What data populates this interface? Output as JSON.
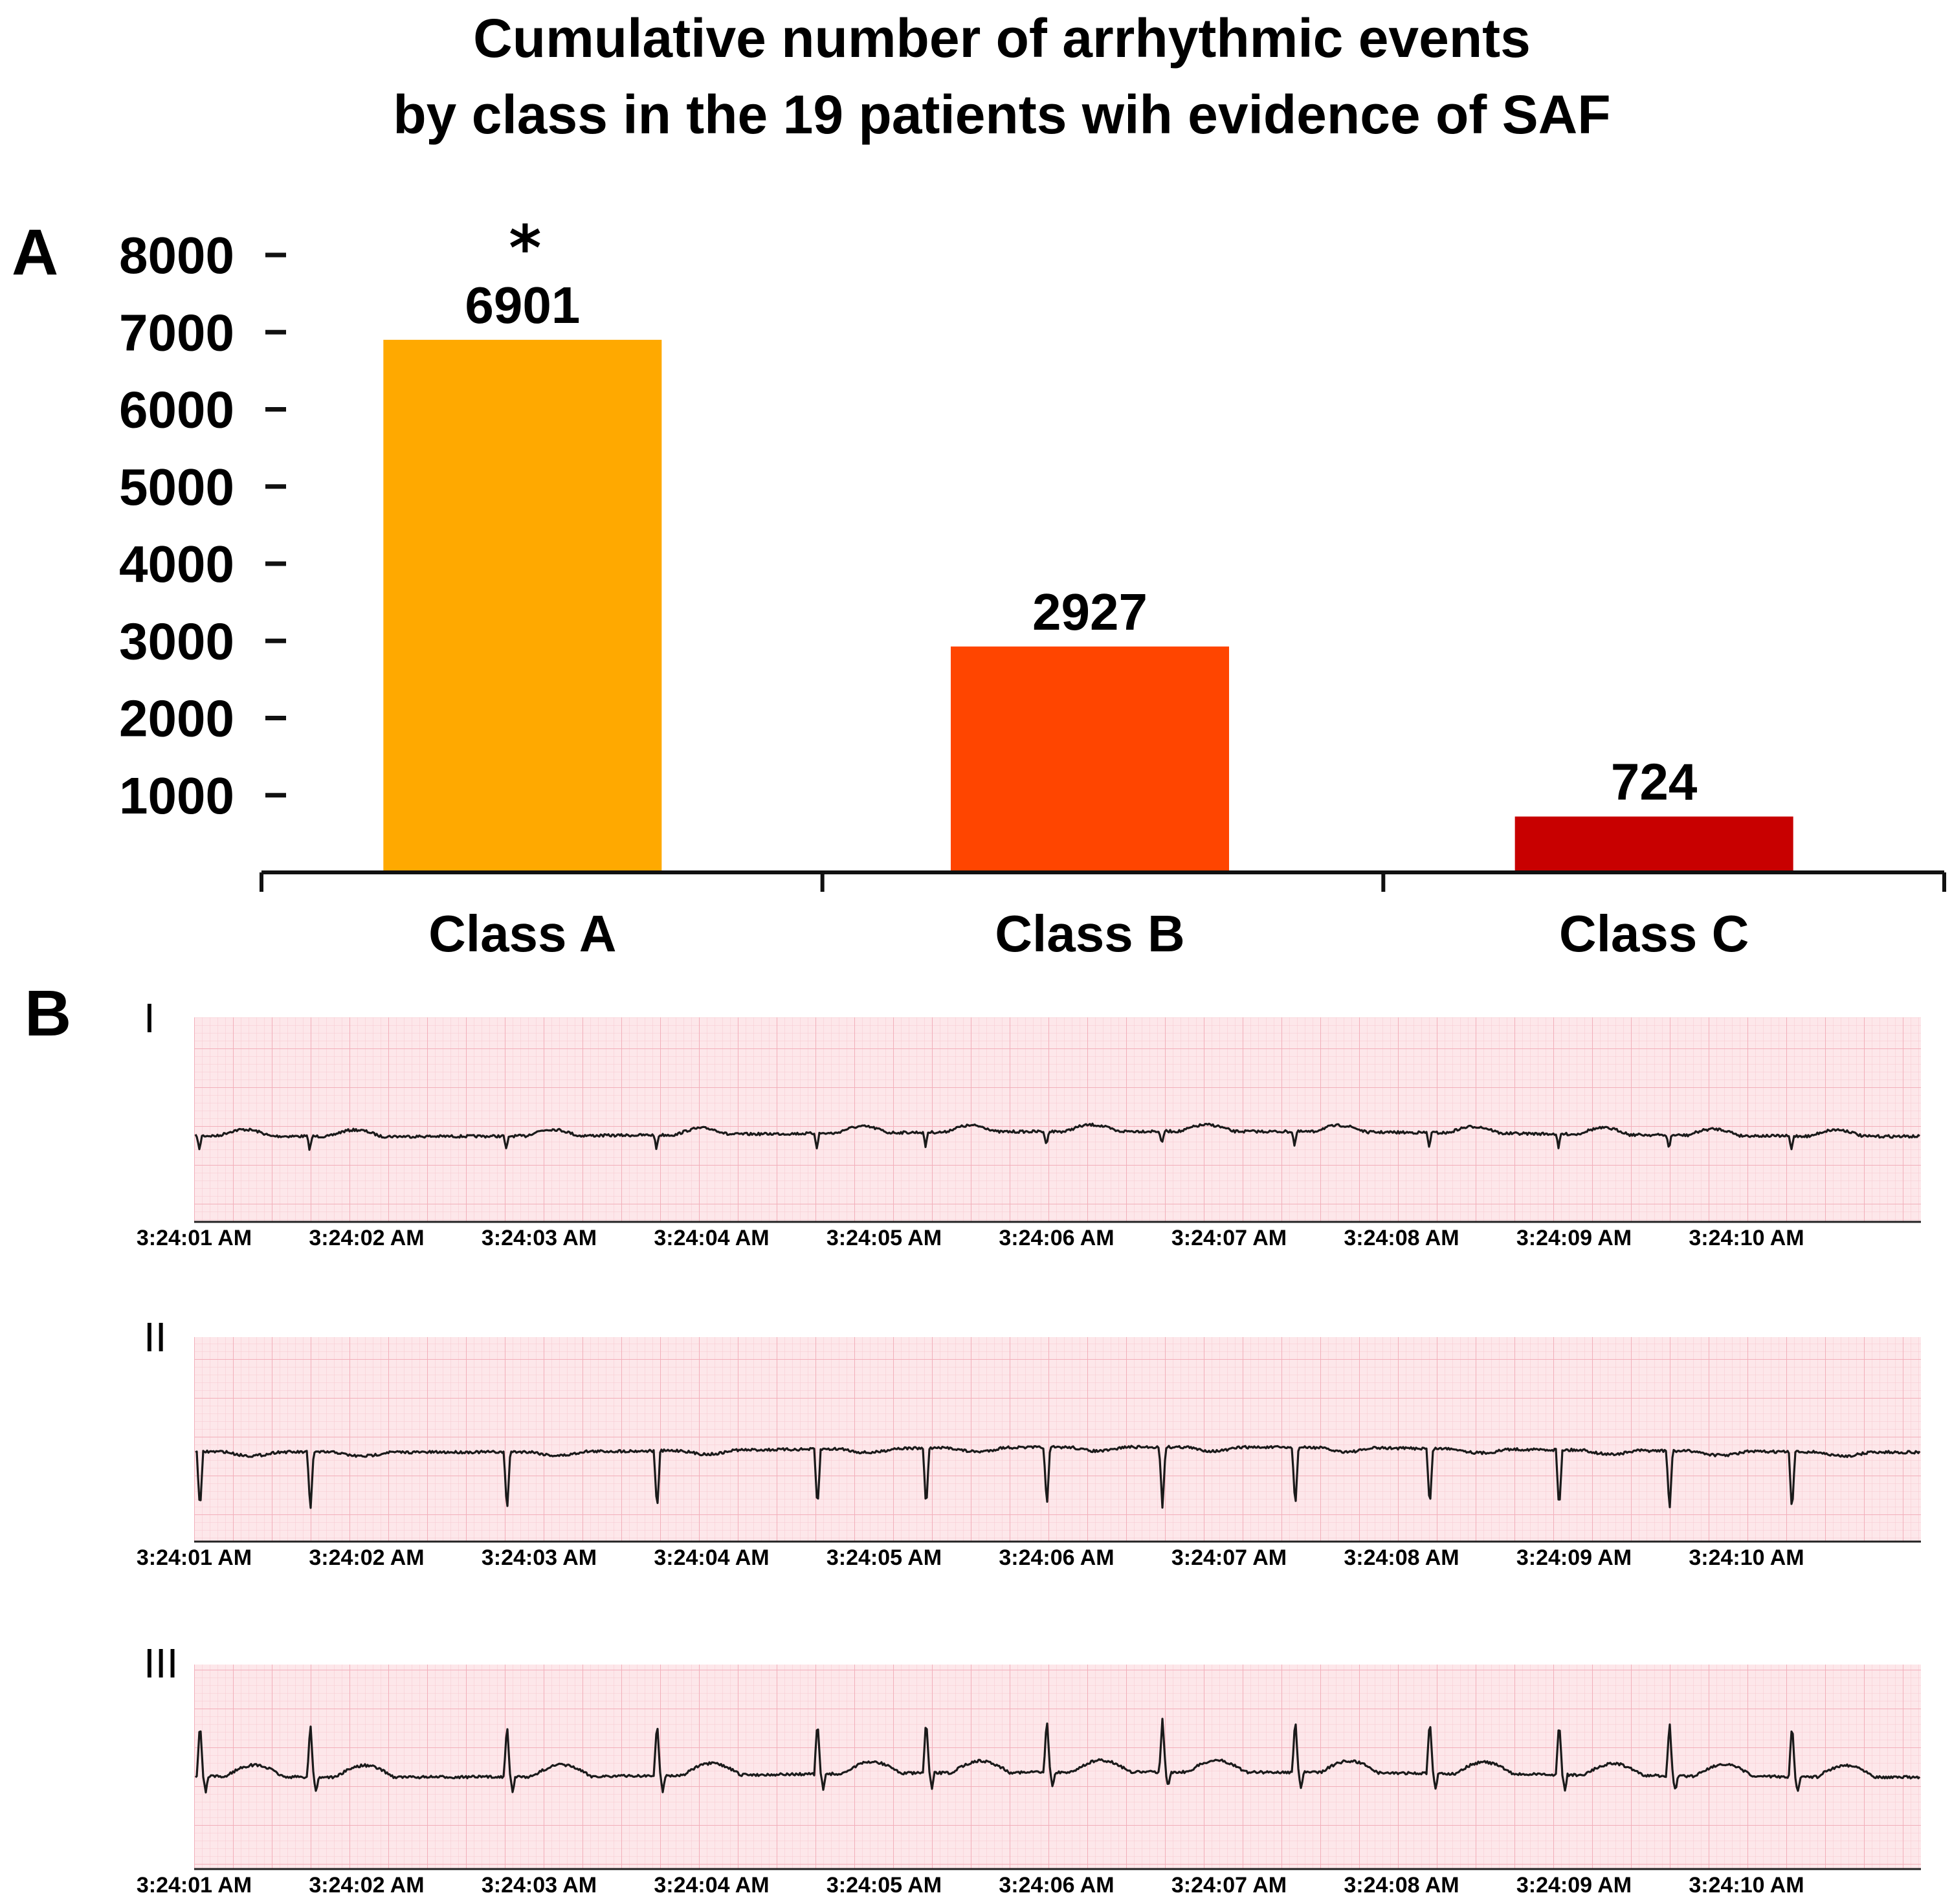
{
  "title_lines": [
    "Cumulative number of arrhythmic events",
    "by class in the 19 patients wih evidence of SAF"
  ],
  "chart_data": [
    {
      "panel": "A",
      "type": "bar",
      "categories": [
        "Class A",
        "Class B",
        "Class C"
      ],
      "values": [
        6901,
        2927,
        724
      ],
      "data_labels": [
        "6901",
        "2927",
        "724"
      ],
      "annotations": [
        {
          "category": "Class A",
          "text": "*"
        }
      ],
      "yticks": [
        1000,
        2000,
        3000,
        4000,
        5000,
        6000,
        7000,
        8000
      ],
      "ytick_labels": [
        "1000",
        "2000",
        "3000",
        "4000",
        "5000",
        "6000",
        "7000",
        "8000"
      ],
      "ylim": [
        0,
        8000
      ],
      "xlabel": "",
      "ylabel": "",
      "colors": [
        "#FFA900",
        "#FF4500",
        "#C80000"
      ],
      "grid": false
    },
    {
      "panel": "B",
      "type": "line",
      "description_type": "ecg_strip",
      "time_labels": [
        "3:24:01 AM",
        "3:24:02 AM",
        "3:24:03 AM",
        "3:24:04 AM",
        "3:24:05 AM",
        "3:24:06 AM",
        "3:24:07 AM",
        "3:24:08 AM",
        "3:24:09 AM",
        "3:24:10 AM"
      ],
      "leads": [
        {
          "name": "I",
          "polarity": "small",
          "beat_times": [
            0.03,
            0.67,
            1.81,
            2.68,
            3.61,
            4.24,
            4.94,
            5.61,
            6.38,
            7.16,
            7.91,
            8.55,
            9.26
          ]
        },
        {
          "name": "II",
          "polarity": "down",
          "beat_times": [
            0.03,
            0.67,
            1.81,
            2.68,
            3.61,
            4.24,
            4.94,
            5.61,
            6.38,
            7.16,
            7.91,
            8.55,
            9.26
          ]
        },
        {
          "name": "III",
          "polarity": "up",
          "beat_times": [
            0.03,
            0.67,
            1.81,
            2.68,
            3.61,
            4.24,
            4.94,
            5.61,
            6.38,
            7.16,
            7.91,
            8.55,
            9.26
          ]
        }
      ],
      "grid_color": "#F9D3D8",
      "background": "#FDE7EA",
      "trace_color": "#1a1a1a"
    }
  ]
}
